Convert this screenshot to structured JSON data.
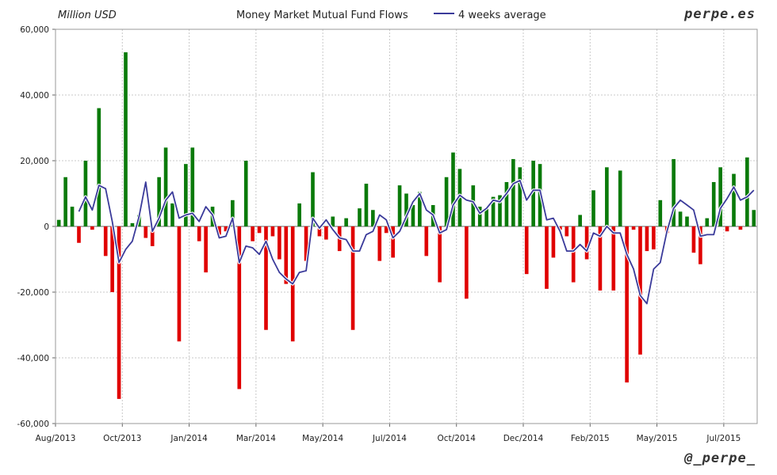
{
  "header": {
    "unit": "Million USD",
    "title": "Money Market Mutual Fund Flows",
    "brand": "perpe.es"
  },
  "footer": {
    "handle": "@_perpe_"
  },
  "chart_data": {
    "type": "bar",
    "title": "Money Market Mutual Fund Flows",
    "ylabel": "Million USD",
    "ylim": [
      -60000,
      60000
    ],
    "yticks": [
      60000,
      40000,
      20000,
      0,
      -20000,
      -40000,
      -60000
    ],
    "ytick_labels": [
      "60,000",
      "40,000",
      "20,000",
      "0",
      "-20,000",
      "-40,000",
      "-60,000"
    ],
    "xtick_labels": [
      "Aug/2013",
      "Oct/2013",
      "Jan/2014",
      "Mar/2014",
      "May/2014",
      "Jul/2014",
      "Oct/2014",
      "Dec/2014",
      "Feb/2015",
      "May/2015",
      "Jul/2015"
    ],
    "xtick_index": [
      0,
      10,
      20,
      30,
      40,
      50,
      60,
      70,
      80,
      90,
      100
    ],
    "grid": true,
    "legend": "top",
    "colors": {
      "positive": "#0a7a0a",
      "negative": "#e00000",
      "average": "#3a3a9a"
    },
    "series": [
      {
        "name": "",
        "values": [
          2000,
          15000,
          6000,
          -5000,
          20000,
          -1000,
          36000,
          -9000,
          -20000,
          -52500,
          53000,
          1000,
          3500,
          -3500,
          -6000,
          15000,
          24000,
          7000,
          -35000,
          19000,
          24000,
          -4500,
          -14000,
          6000,
          -2500,
          -1500,
          8000,
          -49500,
          20000,
          -4500,
          -2000,
          -31500,
          -3000,
          -10000,
          -17500,
          -35000,
          7000,
          -10500,
          16500,
          -3000,
          -4000,
          3000,
          -7500,
          2500,
          -31500,
          5500,
          13000,
          5000,
          -10500,
          -2000,
          -9500,
          12500,
          10000,
          6500,
          10500,
          -9000,
          6500,
          -17000,
          15000,
          22500,
          17500,
          -22000,
          12500,
          6000,
          5500,
          9000,
          9500,
          13500,
          20500,
          18000,
          -14500,
          20000,
          19000,
          -19000,
          -9500,
          -1000,
          -3000,
          -17000,
          3500,
          -10000,
          11000,
          -19500,
          18000,
          -19500,
          17000,
          -47500,
          -1000,
          -39000,
          -7500,
          -7000,
          8000,
          -2000,
          20500,
          4500,
          3000,
          -8000,
          -11500,
          2500,
          13500,
          18000,
          -1500,
          16000,
          -1000,
          21000,
          5000
        ]
      },
      {
        "name": "4 weeks average",
        "values": [
          null,
          null,
          null,
          4500,
          9000,
          5000,
          12500,
          11500,
          1500,
          -11000,
          -7000,
          -4500,
          3000,
          13500,
          -1500,
          2500,
          8000,
          10500,
          2500,
          3500,
          4000,
          1500,
          6000,
          3500,
          -3500,
          -3000,
          2500,
          -11000,
          -6000,
          -6500,
          -8500,
          -4500,
          -10000,
          -14000,
          -16000,
          -17500,
          -14000,
          -13500,
          2500,
          -500,
          2000,
          -1000,
          -3500,
          -4000,
          -7500,
          -7500,
          -2500,
          -1500,
          3500,
          2000,
          -3500,
          -1500,
          3000,
          7500,
          10000,
          5000,
          3500,
          -2000,
          -1000,
          6500,
          9500,
          8000,
          7500,
          4000,
          5500,
          8000,
          7500,
          10000,
          13000,
          14000,
          8000,
          11000,
          11000,
          2000,
          2500,
          -1500,
          -7500,
          -7500,
          -5500,
          -7500,
          -2000,
          -3000,
          0,
          -2000,
          -2000,
          -8500,
          -13000,
          -21000,
          -23500,
          -13000,
          -11000,
          -1500,
          5500,
          8000,
          6500,
          5000,
          -3000,
          -2500,
          -2500,
          5500,
          8500,
          12000,
          8000,
          9000,
          11000
        ]
      }
    ]
  }
}
